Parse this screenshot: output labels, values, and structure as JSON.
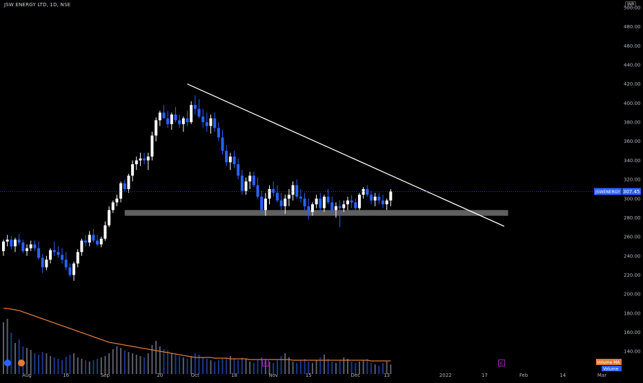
{
  "header": {
    "symbol_line": "JSW ENERGY LTD, 1D, NSE",
    "currency": "INR"
  },
  "colors": {
    "background": "#000000",
    "up_candle": "#ffffff",
    "down_candle": "#2962ff",
    "trendline": "#ffffff",
    "support_zone": "#808080",
    "volume_ma": "#e07b39",
    "price_line": "#2962ff",
    "axis_text": "#b2b5be"
  },
  "chart_data": {
    "type": "candlestick",
    "symbol": "JSWENERGY",
    "interval": "1D",
    "y_range": [
      130,
      500
    ],
    "y_ticks": [
      140,
      160,
      180,
      200,
      220,
      240,
      260,
      280,
      300,
      320,
      340,
      360,
      380,
      400,
      420,
      440,
      460,
      480,
      500
    ],
    "y_tick_labels": [
      "140.00",
      "160.00",
      "180.00",
      "200.00",
      "220.00",
      "240.00",
      "260.00",
      "280.00",
      "300.00",
      "320.00",
      "340.00",
      "360.00",
      "380.00",
      "400.00",
      "420.00",
      "440.00",
      "460.00",
      "480.00",
      "500.00"
    ],
    "x_ticks": [
      {
        "label": "Aug",
        "bar": 6
      },
      {
        "label": "16",
        "bar": 16
      },
      {
        "label": "Sep",
        "bar": 26
      },
      {
        "label": "20",
        "bar": 40
      },
      {
        "label": "Oct",
        "bar": 49
      },
      {
        "label": "18",
        "bar": 59
      },
      {
        "label": "Nov",
        "bar": 69
      },
      {
        "label": "15",
        "bar": 78
      },
      {
        "label": "Dec",
        "bar": 90
      },
      {
        "label": "13",
        "bar": 98
      },
      {
        "label": "2022",
        "bar": 113
      },
      {
        "label": "17",
        "bar": 123
      },
      {
        "label": "Feb",
        "bar": 133
      },
      {
        "label": "14",
        "bar": 143
      },
      {
        "label": "Mar",
        "bar": 153
      }
    ],
    "last_price": 307.45,
    "last_price_label": "307.45",
    "symbol_tag": "JSWENERGY",
    "candles": [
      [
        245,
        257,
        240,
        255
      ],
      [
        255,
        262,
        250,
        257
      ],
      [
        257,
        261,
        247,
        250
      ],
      [
        250,
        259,
        244,
        257
      ],
      [
        257,
        263,
        251,
        254
      ],
      [
        254,
        257,
        243,
        245
      ],
      [
        245,
        252,
        240,
        248
      ],
      [
        248,
        256,
        245,
        252
      ],
      [
        252,
        256,
        245,
        248
      ],
      [
        248,
        255,
        236,
        238
      ],
      [
        238,
        242,
        222,
        228
      ],
      [
        228,
        240,
        225,
        236
      ],
      [
        236,
        248,
        232,
        246
      ],
      [
        246,
        255,
        240,
        244
      ],
      [
        244,
        250,
        238,
        241
      ],
      [
        241,
        248,
        232,
        236
      ],
      [
        236,
        244,
        225,
        228
      ],
      [
        228,
        232,
        218,
        220
      ],
      [
        220,
        234,
        214,
        232
      ],
      [
        232,
        247,
        228,
        244
      ],
      [
        244,
        258,
        240,
        256
      ],
      [
        256,
        262,
        250,
        254
      ],
      [
        254,
        266,
        250,
        262
      ],
      [
        262,
        268,
        254,
        256
      ],
      [
        256,
        262,
        250,
        252
      ],
      [
        252,
        260,
        249,
        258
      ],
      [
        258,
        276,
        256,
        272
      ],
      [
        272,
        292,
        270,
        288
      ],
      [
        288,
        298,
        285,
        296
      ],
      [
        296,
        304,
        292,
        300
      ],
      [
        300,
        318,
        296,
        316
      ],
      [
        316,
        320,
        308,
        310
      ],
      [
        310,
        326,
        306,
        324
      ],
      [
        324,
        340,
        318,
        336
      ],
      [
        336,
        344,
        330,
        340
      ],
      [
        340,
        348,
        334,
        342
      ],
      [
        342,
        348,
        336,
        340
      ],
      [
        340,
        348,
        330,
        344
      ],
      [
        344,
        370,
        340,
        366
      ],
      [
        366,
        385,
        360,
        382
      ],
      [
        382,
        392,
        376,
        390
      ],
      [
        390,
        398,
        384,
        384
      ],
      [
        384,
        392,
        374,
        378
      ],
      [
        378,
        390,
        372,
        388
      ],
      [
        388,
        396,
        380,
        382
      ],
      [
        382,
        388,
        374,
        378
      ],
      [
        378,
        386,
        370,
        384
      ],
      [
        384,
        392,
        376,
        380
      ],
      [
        380,
        402,
        378,
        398
      ],
      [
        398,
        408,
        388,
        394
      ],
      [
        394,
        404,
        384,
        386
      ],
      [
        386,
        394,
        374,
        380
      ],
      [
        380,
        390,
        370,
        376
      ],
      [
        376,
        388,
        368,
        384
      ],
      [
        384,
        390,
        370,
        374
      ],
      [
        374,
        380,
        360,
        364
      ],
      [
        364,
        372,
        346,
        350
      ],
      [
        350,
        356,
        334,
        338
      ],
      [
        338,
        348,
        330,
        344
      ],
      [
        344,
        350,
        332,
        336
      ],
      [
        336,
        342,
        320,
        324
      ],
      [
        324,
        330,
        304,
        308
      ],
      [
        308,
        322,
        304,
        318
      ],
      [
        318,
        328,
        310,
        324
      ],
      [
        324,
        328,
        312,
        314
      ],
      [
        314,
        322,
        300,
        302
      ],
      [
        302,
        308,
        284,
        288
      ],
      [
        288,
        306,
        282,
        300
      ],
      [
        300,
        314,
        294,
        310
      ],
      [
        310,
        318,
        302,
        306
      ],
      [
        306,
        314,
        296,
        298
      ],
      [
        298,
        306,
        288,
        292
      ],
      [
        292,
        304,
        284,
        300
      ],
      [
        300,
        310,
        292,
        304
      ],
      [
        304,
        318,
        298,
        314
      ],
      [
        314,
        320,
        300,
        302
      ],
      [
        302,
        310,
        296,
        300
      ],
      [
        300,
        306,
        288,
        292
      ],
      [
        292,
        300,
        278,
        286
      ],
      [
        286,
        296,
        282,
        294
      ],
      [
        294,
        304,
        290,
        300
      ],
      [
        300,
        306,
        286,
        290
      ],
      [
        290,
        304,
        286,
        302
      ],
      [
        302,
        310,
        294,
        296
      ],
      [
        296,
        302,
        284,
        288
      ],
      [
        288,
        296,
        280,
        292
      ],
      [
        292,
        298,
        270,
        290
      ],
      [
        290,
        298,
        286,
        294
      ],
      [
        294,
        302,
        288,
        298
      ],
      [
        298,
        304,
        290,
        296
      ],
      [
        296,
        300,
        286,
        290
      ],
      [
        290,
        306,
        288,
        304
      ],
      [
        304,
        312,
        300,
        310
      ],
      [
        310,
        314,
        302,
        304
      ],
      [
        304,
        308,
        294,
        298
      ],
      [
        298,
        306,
        292,
        302
      ],
      [
        302,
        306,
        294,
        298
      ],
      [
        298,
        304,
        290,
        294
      ],
      [
        294,
        300,
        288,
        298
      ],
      [
        298,
        310,
        292,
        307.45
      ]
    ],
    "volumes": [
      75,
      80,
      60,
      45,
      50,
      40,
      38,
      35,
      30,
      28,
      32,
      30,
      26,
      24,
      22,
      20,
      25,
      28,
      30,
      24,
      22,
      20,
      18,
      20,
      22,
      24,
      26,
      30,
      36,
      40,
      38,
      34,
      32,
      30,
      28,
      26,
      24,
      30,
      42,
      48,
      40,
      36,
      34,
      30,
      28,
      26,
      24,
      22,
      26,
      30,
      28,
      24,
      22,
      20,
      18,
      20,
      22,
      24,
      26,
      22,
      20,
      24,
      22,
      18,
      16,
      20,
      24,
      22,
      18,
      16,
      20,
      26,
      30,
      24,
      18,
      16,
      20,
      22,
      18,
      16,
      20,
      24,
      28,
      22,
      18,
      16,
      20,
      24,
      22,
      18,
      16,
      18,
      20,
      22,
      16,
      14,
      12,
      16,
      18,
      14
    ],
    "volume_ma": [
      95,
      95,
      94,
      93,
      92,
      90,
      88,
      86,
      84,
      82,
      80,
      78,
      76,
      74,
      72,
      70,
      68,
      66,
      64,
      62,
      60,
      58,
      56,
      54,
      52,
      50,
      48,
      46,
      45,
      44,
      43,
      42,
      41,
      40,
      39,
      38,
      37,
      36,
      35,
      34,
      33,
      32,
      31,
      30,
      29,
      28,
      27,
      26,
      25,
      24,
      24,
      24,
      24,
      24,
      23,
      23,
      23,
      23,
      22,
      22,
      22,
      22,
      22,
      21,
      21,
      21,
      21,
      21,
      21,
      21,
      21,
      21,
      21,
      21,
      20,
      20,
      20,
      20,
      20,
      20,
      20,
      20,
      20,
      20,
      20,
      20,
      20,
      20,
      20,
      20,
      20,
      20,
      20,
      20,
      19,
      19,
      19,
      19,
      19,
      19
    ],
    "trendline": {
      "start_bar": 47,
      "start_price": 420,
      "end_bar": 128,
      "end_price": 271
    },
    "support_zone": {
      "from_bar": 31,
      "to_bar": 129,
      "low": 282,
      "high": 288
    },
    "volume_ma_label": "Volume MA",
    "volume_label": "Volume"
  }
}
